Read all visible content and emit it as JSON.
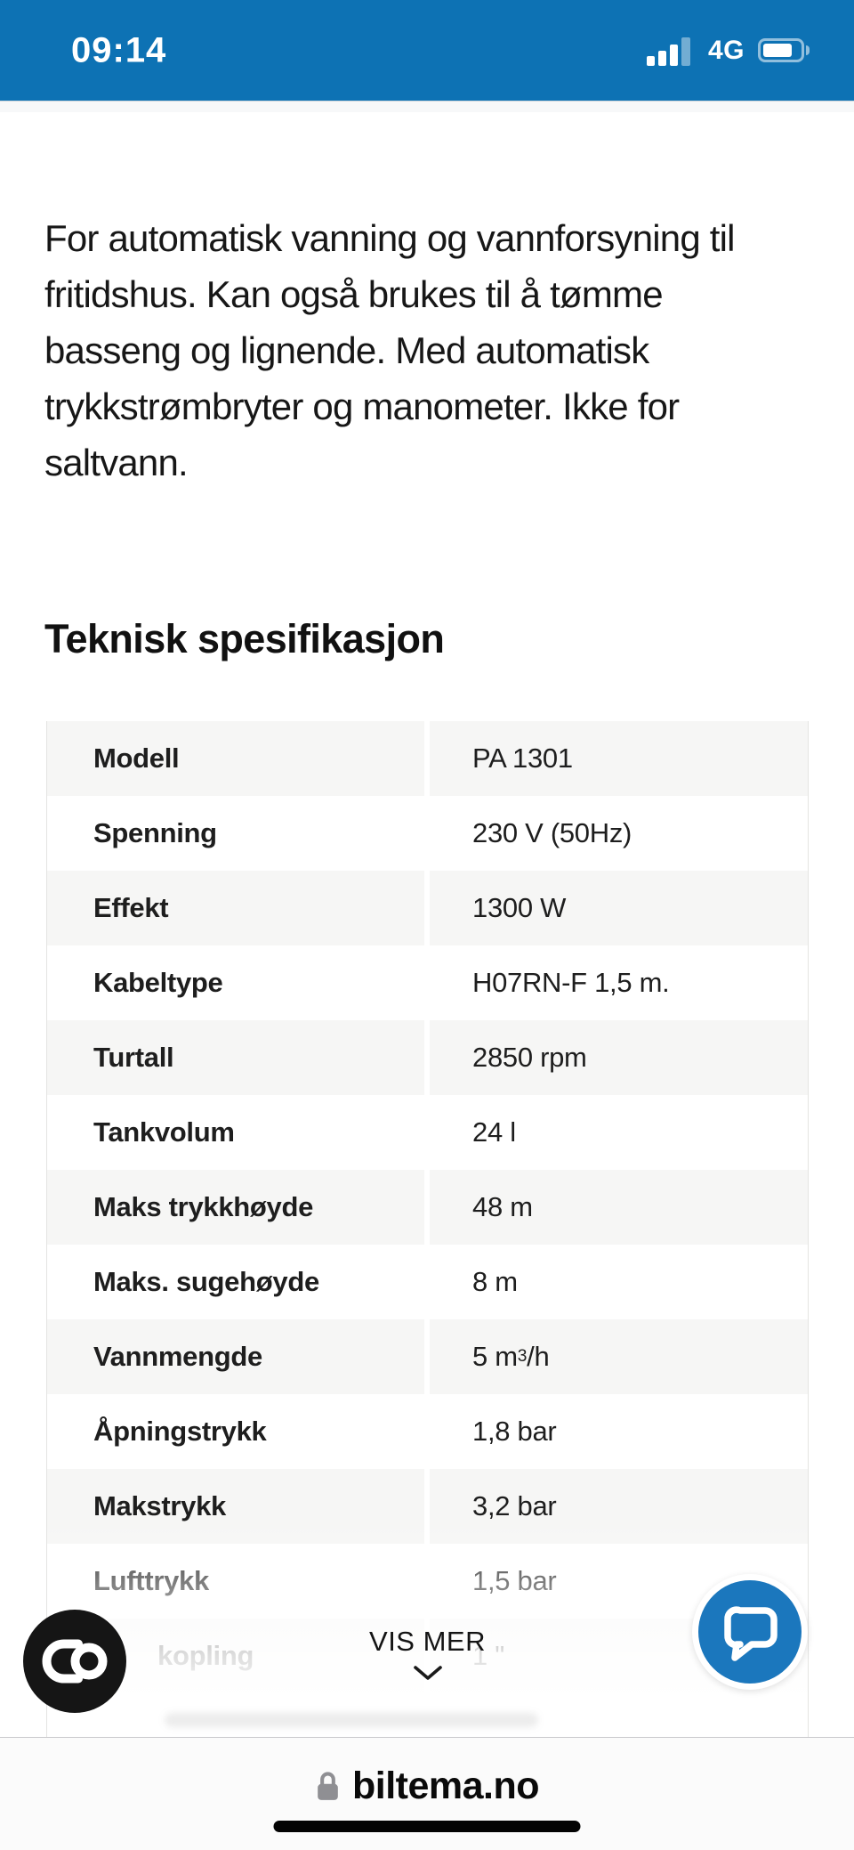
{
  "status_bar": {
    "time": "09:14",
    "network": "4G",
    "signal_icon": "cellular-signal-3-of-4-bars",
    "battery_icon": "battery-level-80"
  },
  "content": {
    "description_lines": [
      "For automatisk vanning og vannforsyning til",
      "fritidshus. Kan også brukes til å tømme",
      "basseng og lignende. Med automatisk",
      "trykkstrømbryter og manometer. Ikke for",
      "saltvann."
    ],
    "section_title": "Teknisk spesifikasjon",
    "spec_table": {
      "rows": [
        {
          "label": "Modell",
          "value": "PA 1301"
        },
        {
          "label": "Spenning",
          "value": "230 V (50Hz)"
        },
        {
          "label": "Effekt",
          "value": "1300 W"
        },
        {
          "label": "Kabeltype",
          "value": "H07RN-F 1,5 m."
        },
        {
          "label": "Turtall",
          "value": "2850 rpm"
        },
        {
          "label": "Tankvolum",
          "value": "24 l"
        },
        {
          "label": "Maks trykkhøyde",
          "value": "48 m"
        },
        {
          "label": "Maks. sugehøyde",
          "value": "8 m"
        },
        {
          "label": "Vannmengde",
          "value": "5 m³/h"
        },
        {
          "label": "Åpningstrykk",
          "value": "1,8 bar"
        },
        {
          "label": "Makstrykk",
          "value": "3,2 bar"
        },
        {
          "label": "Lufttrykk",
          "value": "1,5 bar"
        },
        {
          "label": "kopling",
          "value": "1 \"",
          "faded": true,
          "indent": true
        }
      ]
    },
    "show_more": {
      "label": "VIS MER",
      "chevron_icon": "chevron-down"
    }
  },
  "floating": {
    "cookie_button_icon": "cookie-consent-co-logo",
    "chat_button_icon": "chat-bubble"
  },
  "browser_bar": {
    "domain": "biltema.no",
    "lock_icon": "lock"
  },
  "colors": {
    "status_bar_blue": "#0d72b4",
    "chat_blue": "#1b77bd",
    "row_stripe_gray": "#f6f6f5",
    "cookie_button_black": "#151515"
  }
}
